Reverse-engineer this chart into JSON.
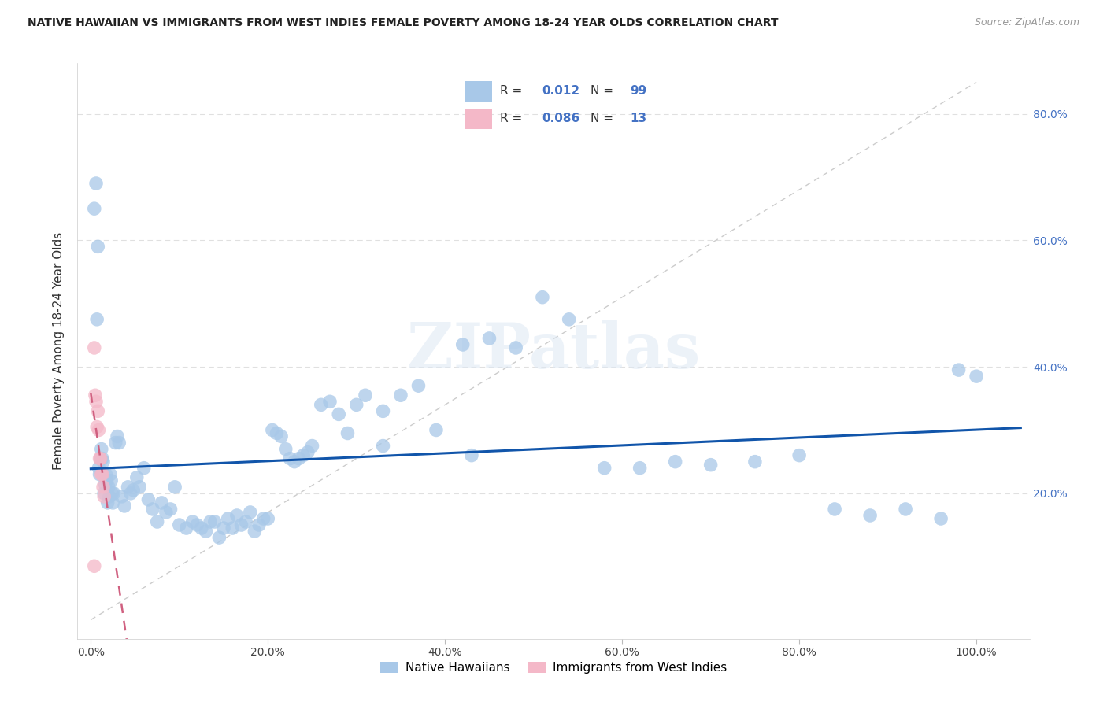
{
  "title": "NATIVE HAWAIIAN VS IMMIGRANTS FROM WEST INDIES FEMALE POVERTY AMONG 18-24 YEAR OLDS CORRELATION CHART",
  "source": "Source: ZipAtlas.com",
  "ylabel": "Female Poverty Among 18-24 Year Olds",
  "xlim": [
    -0.015,
    1.06
  ],
  "ylim": [
    -0.03,
    0.88
  ],
  "xticks": [
    0.0,
    0.2,
    0.4,
    0.6,
    0.8,
    1.0
  ],
  "yticks": [
    0.0,
    0.2,
    0.4,
    0.6,
    0.8
  ],
  "xtick_labels": [
    "0.0%",
    "20.0%",
    "40.0%",
    "60.0%",
    "80.0%",
    "100.0%"
  ],
  "ytick_labels_right": [
    "20.0%",
    "40.0%",
    "60.0%",
    "80.0%"
  ],
  "blue_color": "#a8c8e8",
  "pink_color": "#f4b8c8",
  "trend_blue_color": "#1155aa",
  "trend_pink_color": "#d06080",
  "diag_color": "#cccccc",
  "grid_color": "#e0e0e0",
  "watermark": "ZIPatlas",
  "legend_title_blue": "R =  0.012   N = 99",
  "legend_title_pink": "R =  0.086   N = 13",
  "nh_x": [
    0.004,
    0.006,
    0.007,
    0.008,
    0.009,
    0.01,
    0.011,
    0.012,
    0.013,
    0.014,
    0.015,
    0.016,
    0.017,
    0.018,
    0.019,
    0.02,
    0.021,
    0.022,
    0.023,
    0.024,
    0.025,
    0.026,
    0.028,
    0.03,
    0.032,
    0.035,
    0.038,
    0.042,
    0.045,
    0.048,
    0.052,
    0.055,
    0.06,
    0.065,
    0.07,
    0.075,
    0.08,
    0.085,
    0.09,
    0.095,
    0.1,
    0.108,
    0.115,
    0.12,
    0.125,
    0.13,
    0.135,
    0.14,
    0.145,
    0.15,
    0.155,
    0.16,
    0.165,
    0.17,
    0.175,
    0.18,
    0.185,
    0.19,
    0.195,
    0.2,
    0.205,
    0.21,
    0.215,
    0.22,
    0.225,
    0.23,
    0.235,
    0.24,
    0.245,
    0.25,
    0.26,
    0.27,
    0.28,
    0.29,
    0.3,
    0.31,
    0.33,
    0.35,
    0.37,
    0.39,
    0.42,
    0.45,
    0.48,
    0.51,
    0.54,
    0.58,
    0.62,
    0.66,
    0.7,
    0.75,
    0.8,
    0.84,
    0.88,
    0.92,
    0.96,
    0.98,
    1.0,
    0.43,
    0.33
  ],
  "nh_y": [
    0.65,
    0.69,
    0.475,
    0.59,
    0.24,
    0.23,
    0.255,
    0.27,
    0.255,
    0.25,
    0.2,
    0.215,
    0.23,
    0.22,
    0.185,
    0.21,
    0.195,
    0.23,
    0.22,
    0.2,
    0.185,
    0.2,
    0.28,
    0.29,
    0.28,
    0.195,
    0.18,
    0.21,
    0.2,
    0.205,
    0.225,
    0.21,
    0.24,
    0.19,
    0.175,
    0.155,
    0.185,
    0.17,
    0.175,
    0.21,
    0.15,
    0.145,
    0.155,
    0.15,
    0.145,
    0.14,
    0.155,
    0.155,
    0.13,
    0.145,
    0.16,
    0.145,
    0.165,
    0.15,
    0.155,
    0.17,
    0.14,
    0.15,
    0.16,
    0.16,
    0.3,
    0.295,
    0.29,
    0.27,
    0.255,
    0.25,
    0.255,
    0.26,
    0.265,
    0.275,
    0.34,
    0.345,
    0.325,
    0.295,
    0.34,
    0.355,
    0.33,
    0.355,
    0.37,
    0.3,
    0.435,
    0.445,
    0.43,
    0.51,
    0.475,
    0.24,
    0.24,
    0.25,
    0.245,
    0.25,
    0.26,
    0.175,
    0.165,
    0.175,
    0.16,
    0.395,
    0.385,
    0.26,
    0.275
  ],
  "wi_x": [
    0.004,
    0.005,
    0.006,
    0.007,
    0.008,
    0.009,
    0.01,
    0.011,
    0.012,
    0.013,
    0.014,
    0.015,
    0.004
  ],
  "wi_y": [
    0.43,
    0.355,
    0.345,
    0.305,
    0.33,
    0.3,
    0.255,
    0.255,
    0.23,
    0.23,
    0.21,
    0.195,
    0.085
  ]
}
